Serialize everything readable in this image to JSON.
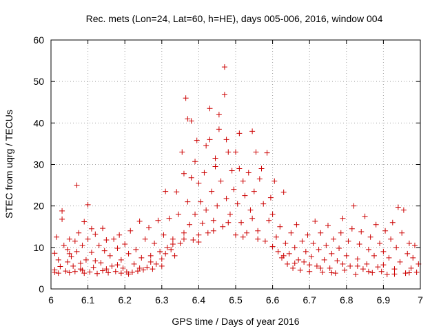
{
  "chart_data": {
    "type": "scatter",
    "title": "Rec. mets (Lon=24, Lat=60, h=HE), days 005-006, 2016, window 004",
    "xlabel": "GPS time / Days of year 2016",
    "ylabel": "STEC from uqrg / TECUs",
    "xlim": [
      6,
      7
    ],
    "ylim": [
      0,
      60
    ],
    "xticks": [
      6,
      6.1,
      6.2,
      6.3,
      6.4,
      6.5,
      6.6,
      6.7,
      6.8,
      6.9,
      7
    ],
    "xtick_labels": [
      "6",
      "6.1",
      "6.2",
      "6.3",
      "6.4",
      "6.5",
      "6.6",
      "6.7",
      "6.8",
      "6.9",
      "7"
    ],
    "yticks": [
      0,
      10,
      20,
      30,
      40,
      50,
      60
    ],
    "ytick_labels": [
      "0",
      "10",
      "20",
      "30",
      "40",
      "50",
      "60"
    ],
    "grid": true,
    "marker": "+",
    "series": [
      {
        "name": "STEC",
        "color": "#cc0000",
        "points": [
          [
            6.01,
            4.0
          ],
          [
            6.01,
            4.6
          ],
          [
            6.01,
            8.6
          ],
          [
            6.015,
            12.5
          ],
          [
            6.02,
            3.8
          ],
          [
            6.025,
            5.4
          ],
          [
            6.03,
            18.8
          ],
          [
            6.03,
            16.8
          ],
          [
            6.035,
            10.5
          ],
          [
            6.04,
            4.3
          ],
          [
            6.045,
            6.5
          ],
          [
            6.045,
            9.5
          ],
          [
            6.05,
            12.0
          ],
          [
            6.05,
            3.9
          ],
          [
            6.055,
            7.8
          ],
          [
            6.06,
            5.5
          ],
          [
            6.065,
            11.5
          ],
          [
            6.065,
            4.2
          ],
          [
            6.07,
            25.0
          ],
          [
            6.07,
            9.0
          ],
          [
            6.075,
            13.5
          ],
          [
            6.08,
            6.2
          ],
          [
            6.085,
            4.5
          ],
          [
            6.085,
            10.5
          ],
          [
            6.09,
            16.2
          ],
          [
            6.09,
            3.8
          ],
          [
            6.095,
            7.0
          ],
          [
            6.1,
            20.3
          ],
          [
            6.1,
            12.0
          ],
          [
            6.105,
            4.1
          ],
          [
            6.11,
            8.8
          ],
          [
            6.11,
            14.5
          ],
          [
            6.115,
            5.2
          ],
          [
            6.12,
            13.2
          ],
          [
            6.125,
            3.7
          ],
          [
            6.13,
            10.5
          ],
          [
            6.135,
            6.3
          ],
          [
            6.14,
            14.6
          ],
          [
            6.14,
            4.4
          ],
          [
            6.145,
            9.2
          ],
          [
            6.15,
            11.8
          ],
          [
            6.155,
            3.9
          ],
          [
            6.16,
            8.0
          ],
          [
            6.165,
            5.5
          ],
          [
            6.17,
            12.0
          ],
          [
            6.175,
            4.2
          ],
          [
            6.18,
            9.8
          ],
          [
            6.185,
            13.0
          ],
          [
            6.19,
            3.8
          ],
          [
            6.19,
            7.0
          ],
          [
            6.195,
            5.0
          ],
          [
            6.2,
            10.8
          ],
          [
            6.205,
            4.1
          ],
          [
            6.21,
            8.5
          ],
          [
            6.215,
            14.0
          ],
          [
            6.22,
            4.0
          ],
          [
            6.225,
            6.0
          ],
          [
            6.23,
            9.5
          ],
          [
            6.235,
            4.3
          ],
          [
            6.24,
            16.3
          ],
          [
            6.245,
            7.5
          ],
          [
            6.25,
            4.6
          ],
          [
            6.255,
            12.0
          ],
          [
            6.26,
            5.2
          ],
          [
            6.265,
            14.8
          ],
          [
            6.27,
            8.0
          ],
          [
            6.275,
            4.8
          ],
          [
            6.28,
            11.0
          ],
          [
            6.285,
            6.0
          ],
          [
            6.29,
            16.5
          ],
          [
            6.295,
            9.0
          ],
          [
            6.3,
            7.2
          ],
          [
            6.305,
            13.0
          ],
          [
            6.31,
            23.5
          ],
          [
            6.31,
            8.5
          ],
          [
            6.315,
            10.0
          ],
          [
            6.32,
            17.0
          ],
          [
            6.325,
            9.5
          ],
          [
            6.33,
            12.0
          ],
          [
            6.335,
            8.0
          ],
          [
            6.34,
            23.4
          ],
          [
            6.345,
            18.0
          ],
          [
            6.35,
            11.0
          ],
          [
            6.355,
            33.0
          ],
          [
            6.36,
            27.8
          ],
          [
            6.36,
            13.5
          ],
          [
            6.365,
            46.0
          ],
          [
            6.37,
            41.0
          ],
          [
            6.37,
            21.0
          ],
          [
            6.375,
            15.5
          ],
          [
            6.38,
            40.5
          ],
          [
            6.38,
            26.8
          ],
          [
            6.385,
            11.8
          ],
          [
            6.39,
            30.7
          ],
          [
            6.39,
            18.0
          ],
          [
            6.395,
            35.8
          ],
          [
            6.4,
            25.5
          ],
          [
            6.4,
            13.0
          ],
          [
            6.405,
            21.0
          ],
          [
            6.41,
            15.8
          ],
          [
            6.415,
            28.0
          ],
          [
            6.42,
            34.5
          ],
          [
            6.42,
            19.0
          ],
          [
            6.425,
            13.5
          ],
          [
            6.43,
            43.5
          ],
          [
            6.43,
            36.0
          ],
          [
            6.435,
            23.5
          ],
          [
            6.44,
            16.5
          ],
          [
            6.445,
            31.5
          ],
          [
            6.445,
            29.5
          ],
          [
            6.45,
            20.0
          ],
          [
            6.455,
            38.5
          ],
          [
            6.455,
            42.0
          ],
          [
            6.46,
            26.0
          ],
          [
            6.465,
            15.0
          ],
          [
            6.47,
            53.5
          ],
          [
            6.47,
            46.8
          ],
          [
            6.475,
            36.0
          ],
          [
            6.475,
            21.8
          ],
          [
            6.48,
            33.0
          ],
          [
            6.485,
            18.0
          ],
          [
            6.49,
            28.5
          ],
          [
            6.495,
            24.0
          ],
          [
            6.5,
            33.0
          ],
          [
            6.5,
            13.0
          ],
          [
            6.505,
            20.5
          ],
          [
            6.51,
            37.5
          ],
          [
            6.51,
            29.0
          ],
          [
            6.515,
            16.0
          ],
          [
            6.52,
            26.0
          ],
          [
            6.525,
            22.5
          ],
          [
            6.53,
            13.5
          ],
          [
            6.535,
            28.0
          ],
          [
            6.54,
            19.0
          ],
          [
            6.545,
            38.0
          ],
          [
            6.545,
            17.0
          ],
          [
            6.55,
            23.5
          ],
          [
            6.555,
            33.0
          ],
          [
            6.56,
            14.0
          ],
          [
            6.565,
            26.5
          ],
          [
            6.57,
            29.0
          ],
          [
            6.575,
            20.5
          ],
          [
            6.58,
            11.5
          ],
          [
            6.585,
            32.8
          ],
          [
            6.59,
            16.5
          ],
          [
            6.595,
            22.0
          ],
          [
            6.6,
            18.0
          ],
          [
            6.605,
            26.0
          ],
          [
            6.61,
            12.5
          ],
          [
            6.615,
            9.0
          ],
          [
            6.62,
            15.0
          ],
          [
            6.625,
            7.5
          ],
          [
            6.63,
            23.3
          ],
          [
            6.635,
            11.0
          ],
          [
            6.64,
            6.0
          ],
          [
            6.645,
            8.5
          ],
          [
            6.65,
            13.5
          ],
          [
            6.655,
            5.0
          ],
          [
            6.66,
            10.0
          ],
          [
            6.665,
            15.5
          ],
          [
            6.67,
            7.0
          ],
          [
            6.675,
            4.5
          ],
          [
            6.68,
            11.5
          ],
          [
            6.685,
            6.5
          ],
          [
            6.69,
            9.0
          ],
          [
            6.695,
            13.0
          ],
          [
            6.7,
            4.2
          ],
          [
            6.705,
            7.8
          ],
          [
            6.71,
            11.0
          ],
          [
            6.715,
            16.3
          ],
          [
            6.72,
            5.5
          ],
          [
            6.725,
            9.5
          ],
          [
            6.73,
            13.5
          ],
          [
            6.735,
            4.0
          ],
          [
            6.74,
            7.0
          ],
          [
            6.745,
            10.5
          ],
          [
            6.75,
            15.3
          ],
          [
            6.755,
            5.0
          ],
          [
            6.76,
            8.5
          ],
          [
            6.765,
            12.0
          ],
          [
            6.77,
            3.8
          ],
          [
            6.775,
            6.8
          ],
          [
            6.78,
            9.8
          ],
          [
            6.785,
            13.5
          ],
          [
            6.79,
            17.0
          ],
          [
            6.795,
            4.5
          ],
          [
            6.8,
            8.0
          ],
          [
            6.805,
            11.5
          ],
          [
            6.81,
            5.5
          ],
          [
            6.815,
            14.5
          ],
          [
            6.82,
            20.0
          ],
          [
            6.825,
            3.5
          ],
          [
            6.83,
            7.2
          ],
          [
            6.835,
            10.8
          ],
          [
            6.84,
            13.8
          ],
          [
            6.845,
            4.8
          ],
          [
            6.85,
            17.5
          ],
          [
            6.855,
            6.0
          ],
          [
            6.86,
            9.5
          ],
          [
            6.865,
            12.5
          ],
          [
            6.87,
            3.9
          ],
          [
            6.875,
            8.0
          ],
          [
            6.88,
            15.5
          ],
          [
            6.885,
            5.3
          ],
          [
            6.89,
            11.0
          ],
          [
            6.895,
            4.2
          ],
          [
            6.9,
            9.0
          ],
          [
            6.905,
            14.0
          ],
          [
            6.91,
            3.5
          ],
          [
            6.915,
            7.5
          ],
          [
            6.92,
            12.0
          ],
          [
            6.925,
            16.0
          ],
          [
            6.93,
            4.8
          ],
          [
            6.935,
            10.0
          ],
          [
            6.94,
            19.7
          ],
          [
            6.945,
            6.5
          ],
          [
            6.95,
            13.5
          ],
          [
            6.955,
            19.0
          ],
          [
            6.96,
            3.8
          ],
          [
            6.965,
            8.5
          ],
          [
            6.97,
            11.0
          ],
          [
            6.975,
            5.0
          ],
          [
            6.98,
            7.5
          ],
          [
            6.985,
            10.5
          ],
          [
            6.99,
            4.0
          ],
          [
            6.995,
            6.0
          ],
          [
            6.02,
            7.0
          ],
          [
            6.05,
            8.5
          ],
          [
            6.08,
            4.8
          ],
          [
            6.12,
            6.8
          ],
          [
            6.15,
            4.8
          ],
          [
            6.18,
            5.8
          ],
          [
            6.21,
            3.6
          ],
          [
            6.24,
            5.0
          ],
          [
            6.27,
            6.5
          ],
          [
            6.3,
            5.5
          ],
          [
            6.33,
            10.8
          ],
          [
            6.36,
            12.0
          ],
          [
            6.4,
            11.3
          ],
          [
            6.44,
            14.0
          ],
          [
            6.48,
            16.0
          ],
          [
            6.52,
            12.5
          ],
          [
            6.56,
            12.0
          ],
          [
            6.6,
            10.2
          ],
          [
            6.63,
            8.0
          ],
          [
            6.66,
            6.2
          ],
          [
            6.7,
            5.8
          ],
          [
            6.73,
            5.0
          ],
          [
            6.76,
            3.9
          ],
          [
            6.79,
            6.0
          ],
          [
            6.83,
            5.5
          ],
          [
            6.86,
            4.2
          ],
          [
            6.9,
            5.8
          ],
          [
            6.93,
            3.6
          ],
          [
            6.97,
            3.9
          ]
        ]
      }
    ]
  }
}
